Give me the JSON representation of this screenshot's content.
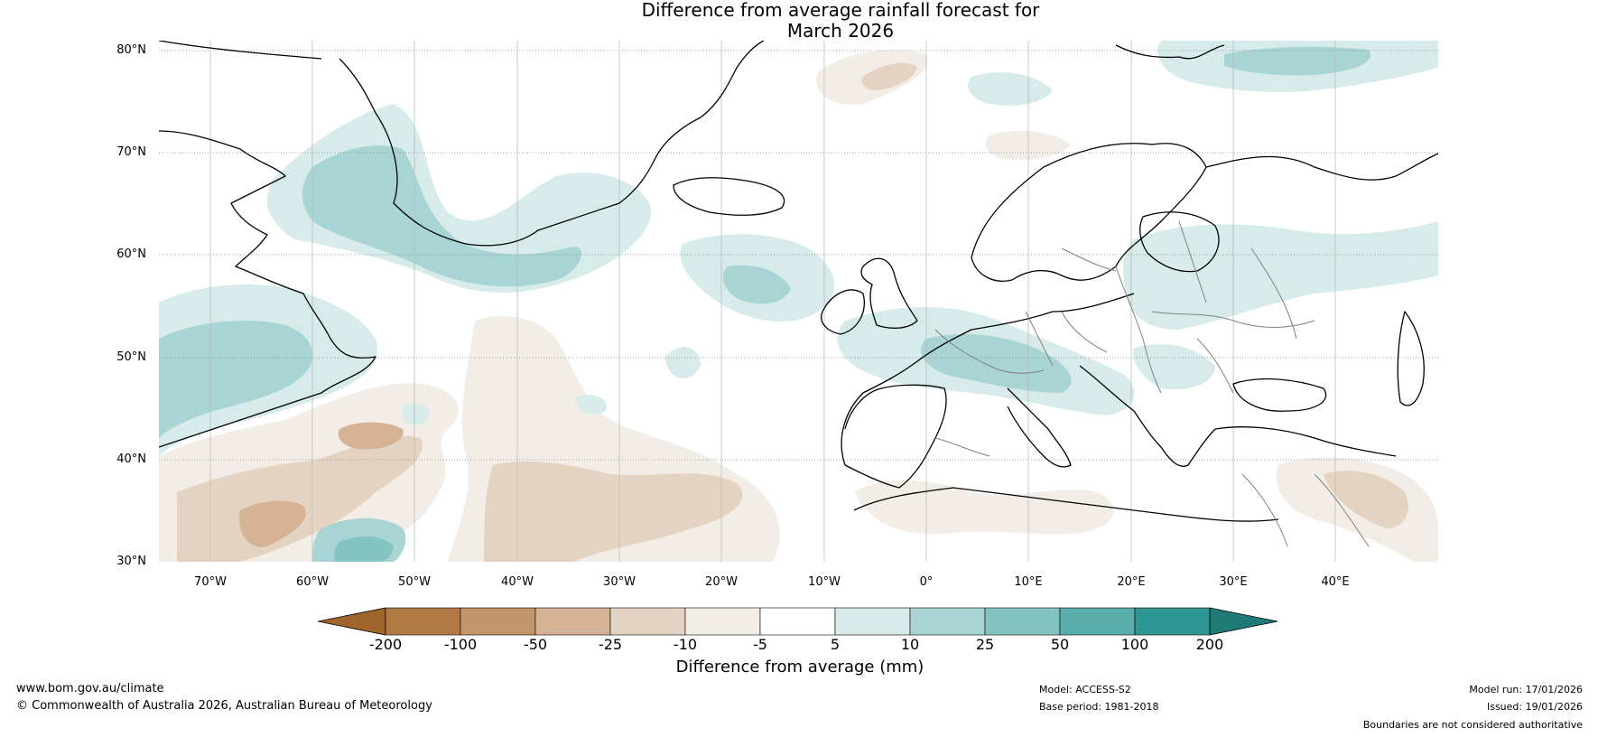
{
  "title": {
    "line1": "Difference from average rainfall forecast for",
    "line2": "March 2026"
  },
  "map": {
    "region": "Europe and North Atlantic",
    "lat_labels": [
      "80°N",
      "70°N",
      "60°N",
      "50°N",
      "40°N",
      "30°N"
    ],
    "lon_labels": [
      "70°W",
      "60°W",
      "50°W",
      "40°W",
      "30°W",
      "20°W",
      "10°W",
      "0°",
      "10°E",
      "20°E",
      "30°E",
      "40°E"
    ]
  },
  "colorbar": {
    "title": "Difference from average (mm)",
    "ticks": [
      "-200",
      "-100",
      "-50",
      "-25",
      "-10",
      "-5",
      "5",
      "10",
      "25",
      "50",
      "100",
      "200"
    ],
    "colors": [
      "#a0652a",
      "#b17944",
      "#c4956b",
      "#d4b293",
      "#e5d3c2",
      "#f3ede8",
      "#ffffff",
      "#d6ebea",
      "#a8d5d4",
      "#83c3c1",
      "#5aafae",
      "#2f9793",
      "#1f7a77"
    ]
  },
  "footer": {
    "website": "www.bom.gov.au/climate",
    "copyright": "© Commonwealth of Australia 2026, Australian Bureau of Meteorology",
    "model": "Model: ACCESS-S2",
    "base_period": "Base period: 1981-2018",
    "model_run": "Model run: 17/01/2026",
    "issued": "Issued: 19/01/2026",
    "disclaimer": "Boundaries are not considered authoritative"
  }
}
